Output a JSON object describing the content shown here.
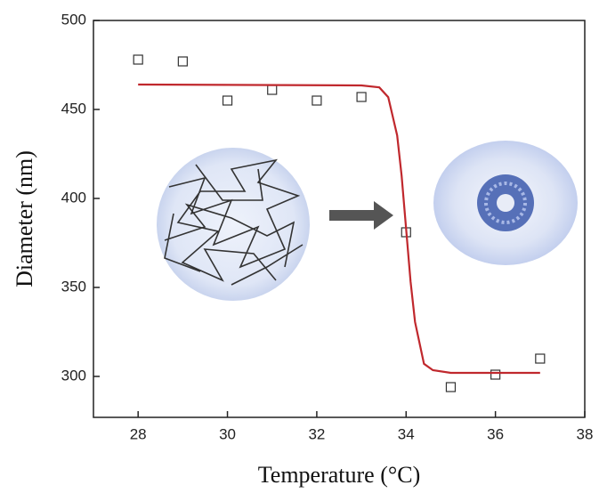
{
  "chart_data": {
    "type": "scatter",
    "x_label": "Temperature (°C)",
    "y_label": "Diameter (nm)",
    "xlim": [
      27,
      38
    ],
    "ylim": [
      277,
      500
    ],
    "xticks": [
      28,
      30,
      32,
      34,
      36,
      38
    ],
    "yticks": [
      300,
      350,
      400,
      450,
      500
    ],
    "series": [
      {
        "type": "scatter",
        "color": "#333333",
        "x": [
          28,
          29,
          30,
          31,
          32,
          33,
          34,
          35,
          36,
          37
        ],
        "values": [
          478,
          477,
          455,
          461,
          455,
          457,
          381,
          294,
          301,
          310
        ]
      },
      {
        "type": "line",
        "color": "#c0282d",
        "x": [
          28,
          33,
          33.4,
          33.6,
          33.8,
          33.9,
          34,
          34.1,
          34.2,
          34.4,
          34.6,
          35,
          37
        ],
        "values": [
          464,
          463.5,
          462.4,
          456.9,
          435.4,
          412.7,
          383,
          353.3,
          330.6,
          307.1,
          303.5,
          302,
          302
        ]
      }
    ]
  }
}
